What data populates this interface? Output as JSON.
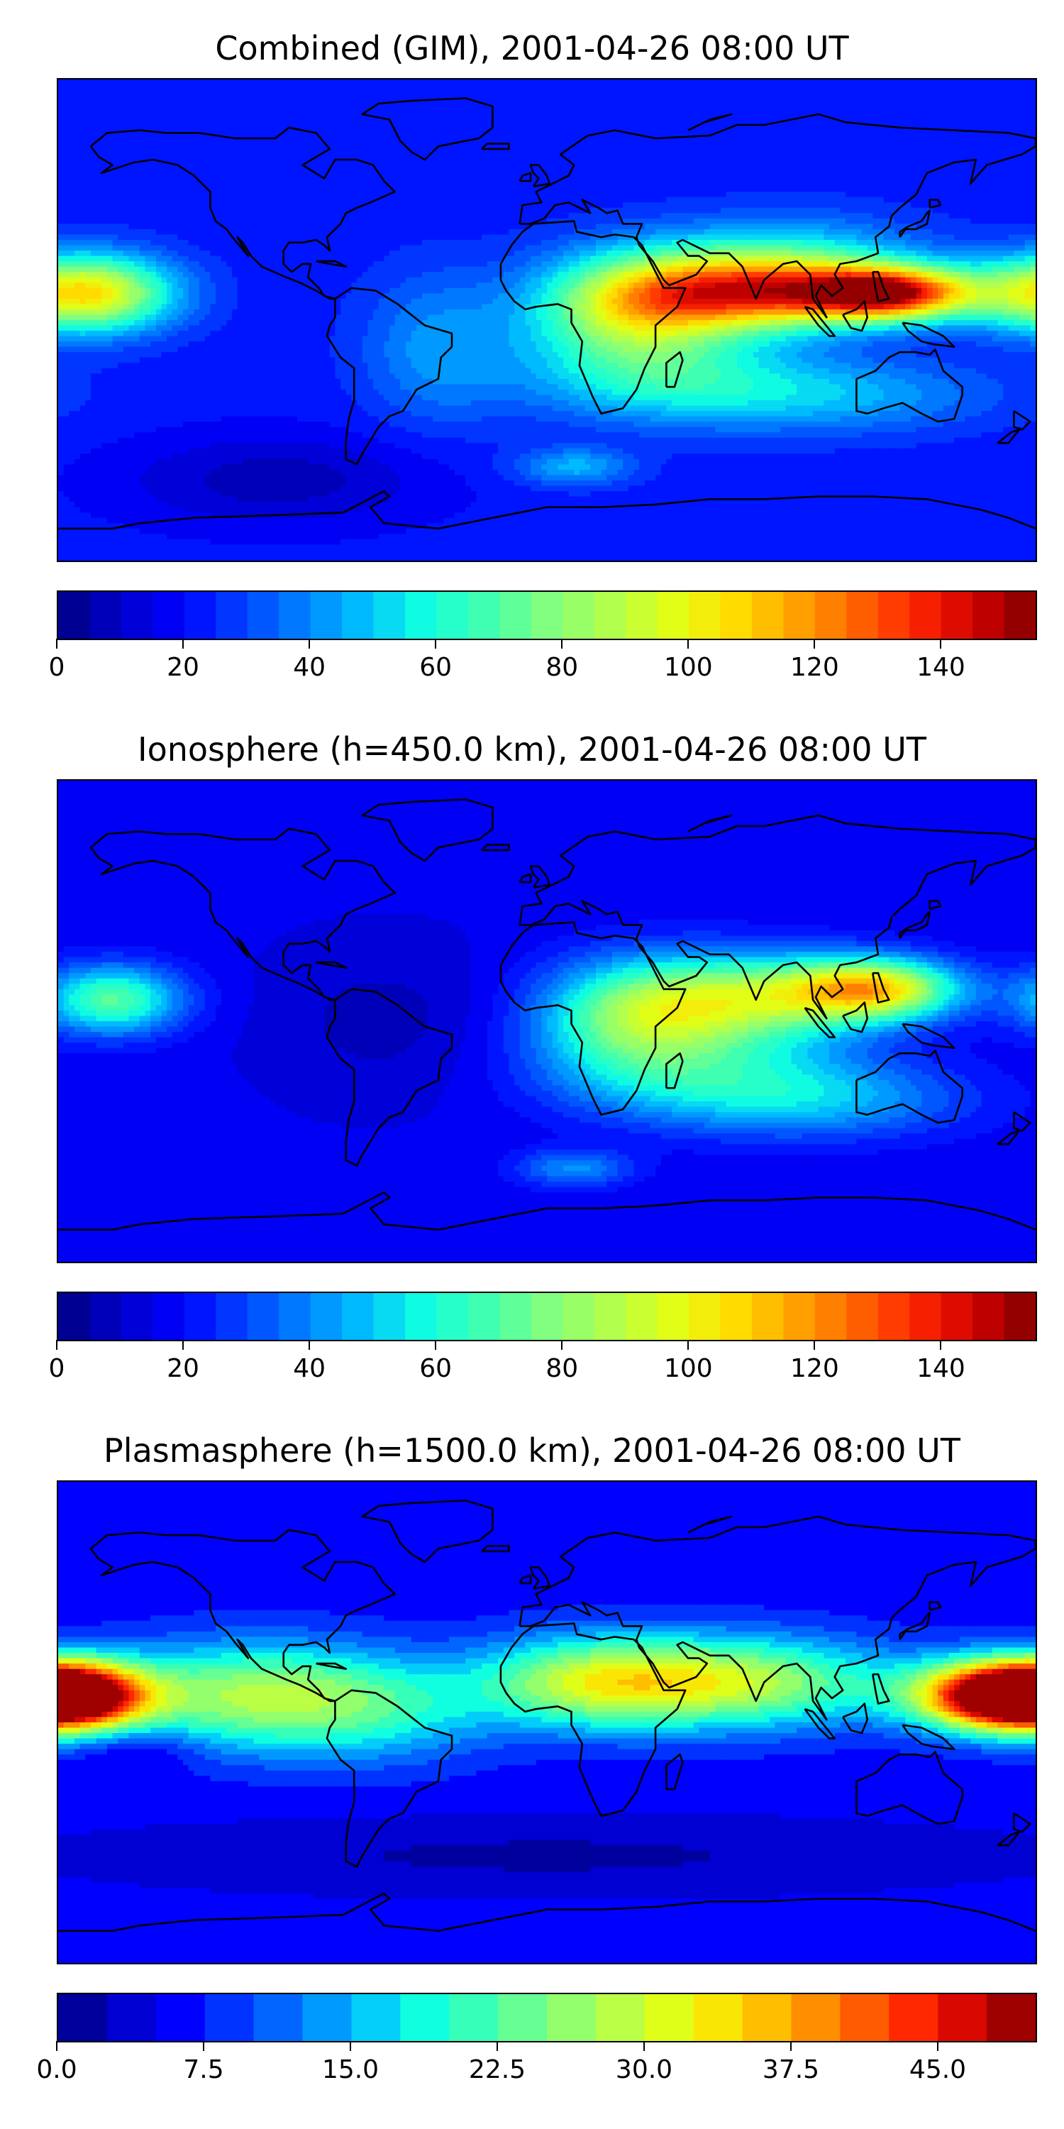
{
  "chart_data": [
    {
      "type": "heatmap",
      "title": "Combined (GIM), 2001-04-26 08:00 UT",
      "colorbar": {
        "min": 0,
        "max": 155,
        "levels": 31,
        "ticks": [
          0,
          20,
          40,
          60,
          80,
          100,
          120,
          140
        ],
        "tick_labels": [
          "0",
          "20",
          "40",
          "60",
          "80",
          "100",
          "120",
          "140"
        ]
      },
      "field": {
        "base": 22,
        "blobs": [
          {
            "lon": 125,
            "lat": 10,
            "amp": 120,
            "sx": 22,
            "sy": 7
          },
          {
            "lon": 72,
            "lat": 10,
            "amp": 90,
            "sx": 30,
            "sy": 10
          },
          {
            "lon": 30,
            "lat": 5,
            "amp": 60,
            "sx": 25,
            "sy": 14
          },
          {
            "lon": -170,
            "lat": 10,
            "amp": 85,
            "sx": 22,
            "sy": 10
          },
          {
            "lon": 90,
            "lat": 22,
            "amp": 30,
            "sx": 35,
            "sy": 12
          },
          {
            "lon": 40,
            "lat": -20,
            "amp": 30,
            "sx": 35,
            "sy": 12
          },
          {
            "lon": 10,
            "lat": -55,
            "amp": 25,
            "sx": 15,
            "sy": 5
          },
          {
            "lon": 100,
            "lat": -28,
            "amp": 25,
            "sx": 45,
            "sy": 10
          },
          {
            "lon": -40,
            "lat": -10,
            "amp": 20,
            "sx": 20,
            "sy": 20
          },
          {
            "lon": -100,
            "lat": -60,
            "amp": -15,
            "sx": 40,
            "sy": 12
          }
        ]
      }
    },
    {
      "type": "heatmap",
      "title": "Ionosphere  (h=450.0 km), 2001-04-26 08:00 UT",
      "colorbar": {
        "min": 0,
        "max": 155,
        "levels": 31,
        "ticks": [
          0,
          20,
          40,
          60,
          80,
          100,
          120,
          140
        ],
        "tick_labels": [
          "0",
          "20",
          "40",
          "60",
          "80",
          "100",
          "120",
          "140"
        ]
      },
      "field": {
        "base": 16,
        "blobs": [
          {
            "lon": 120,
            "lat": 12,
            "amp": 85,
            "sx": 22,
            "sy": 8
          },
          {
            "lon": 70,
            "lat": 8,
            "amp": 65,
            "sx": 32,
            "sy": 12
          },
          {
            "lon": 30,
            "lat": 0,
            "amp": 45,
            "sx": 25,
            "sy": 15
          },
          {
            "lon": -160,
            "lat": 8,
            "amp": 55,
            "sx": 18,
            "sy": 9
          },
          {
            "lon": 60,
            "lat": -20,
            "amp": 30,
            "sx": 40,
            "sy": 12
          },
          {
            "lon": 10,
            "lat": -55,
            "amp": 25,
            "sx": 15,
            "sy": 5
          },
          {
            "lon": 100,
            "lat": -30,
            "amp": 25,
            "sx": 40,
            "sy": 10
          },
          {
            "lon": -60,
            "lat": 0,
            "amp": -8,
            "sx": 30,
            "sy": 20
          }
        ]
      }
    },
    {
      "type": "heatmap",
      "title": "Plasmasphere (h=1500.0 km), 2001-04-26 08:00 UT",
      "colorbar": {
        "min": 0,
        "max": 50,
        "levels": 20,
        "ticks": [
          0,
          7.5,
          15,
          22.5,
          30,
          37.5,
          45
        ],
        "tick_labels": [
          "0.0",
          "7.5",
          "15.0",
          "22.5",
          "30.0",
          "37.5",
          "45.0"
        ]
      },
      "field": {
        "base": 6,
        "blobs": [
          {
            "lon": -175,
            "lat": 10,
            "amp": 40,
            "sx": 20,
            "sy": 9
          },
          {
            "lon": 165,
            "lat": 10,
            "amp": 38,
            "sx": 22,
            "sy": 9
          },
          {
            "lon": 70,
            "lat": 15,
            "amp": 22,
            "sx": 40,
            "sy": 12
          },
          {
            "lon": 15,
            "lat": 15,
            "amp": 18,
            "sx": 30,
            "sy": 12
          },
          {
            "lon": -110,
            "lat": 10,
            "amp": 20,
            "sx": 35,
            "sy": 14
          },
          {
            "lon": -60,
            "lat": 5,
            "amp": 10,
            "sx": 30,
            "sy": 14
          },
          {
            "lon": -150,
            "lat": -10,
            "amp": -5,
            "sx": 15,
            "sy": 6
          },
          {
            "lon": 0,
            "lat": -50,
            "amp": -4,
            "sx": 120,
            "sy": 10
          }
        ]
      }
    }
  ],
  "colormap": [
    "#00007f",
    "#0000c8",
    "#0000ff",
    "#0040ff",
    "#0080ff",
    "#00c0ff",
    "#10ffe0",
    "#40ffb0",
    "#80ff80",
    "#b0ff50",
    "#e0ff18",
    "#ffe000",
    "#ffa800",
    "#ff6800",
    "#ff2800",
    "#d00000",
    "#7f0000"
  ],
  "coastline_color": "#000000"
}
